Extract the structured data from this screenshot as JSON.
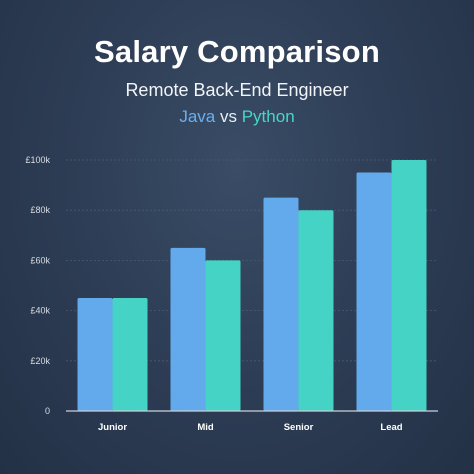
{
  "chart_data": {
    "type": "bar",
    "title": "Salary Comparison",
    "subtitle": "Remote Back-End Engineer",
    "comparison": {
      "series_a": "Java",
      "joiner": "vs",
      "series_b": "Python"
    },
    "categories": [
      "Junior",
      "Mid",
      "Senior",
      "Lead"
    ],
    "series": [
      {
        "name": "Java",
        "values": [
          45000,
          65000,
          85000,
          95000
        ],
        "color": "#62aaeb"
      },
      {
        "name": "Python",
        "values": [
          45000,
          60000,
          80000,
          100000
        ],
        "color": "#45d3c6"
      }
    ],
    "ylim": [
      0,
      100000
    ],
    "yticks": [
      0,
      20000,
      40000,
      60000,
      80000,
      100000
    ],
    "ytick_labels": [
      "0",
      "£20k",
      "£40k",
      "£60k",
      "£80k",
      "£100k"
    ],
    "grid": true,
    "legend": "none"
  },
  "colors": {
    "background": "#2e3e56",
    "grid": "#4a5a72",
    "axis": "#c9d0da"
  }
}
